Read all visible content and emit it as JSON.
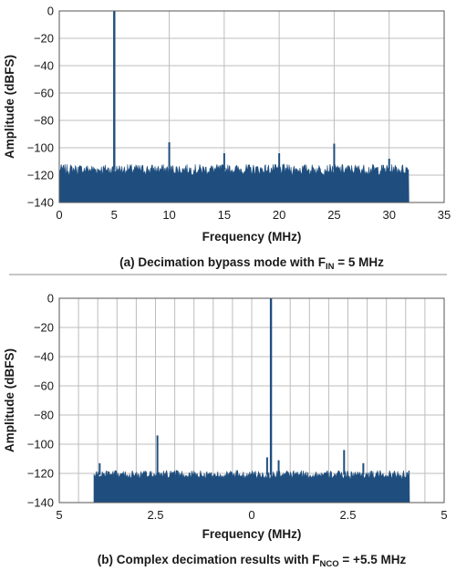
{
  "colors": {
    "trace": "#1f4e7e",
    "grid": "#bdbdbd",
    "frame": "#555555",
    "divider": "#8c8c8c"
  },
  "chart_data": [
    {
      "type": "line",
      "title": "",
      "caption_parts": [
        "(a) Decimation bypass mode with F",
        "IN",
        " = 5 MHz"
      ],
      "xlabel": "Frequency (MHz)",
      "ylabel": "Amplitude (dBFS)",
      "xlim": [
        0,
        35
      ],
      "ylim": [
        -140,
        0
      ],
      "x_ticks": [
        0,
        5,
        10,
        15,
        20,
        25,
        30,
        35
      ],
      "x_tick_labels": [
        "0",
        "5",
        "10",
        "15",
        "20",
        "25",
        "30",
        "35"
      ],
      "y_ticks": [
        0,
        -20,
        -40,
        -60,
        -80,
        -100,
        -120,
        -140
      ],
      "y_tick_labels": [
        "0",
        "−20",
        "−40",
        "−60",
        "−80",
        "−100",
        "−120",
        "−140"
      ],
      "grid": true,
      "noise_floor": {
        "x_range": [
          0,
          31.8
        ],
        "level": -116,
        "jitter": 4
      },
      "spurs": [
        {
          "x": 5,
          "y": 0
        },
        {
          "x": 10,
          "y": -96
        },
        {
          "x": 15,
          "y": -104
        },
        {
          "x": 20,
          "y": -104
        },
        {
          "x": 25,
          "y": -97
        },
        {
          "x": 30,
          "y": -108
        }
      ]
    },
    {
      "type": "line",
      "title": "",
      "caption_parts": [
        "(b) Complex decimation results with F",
        "NCO",
        " = +5.5 MHz"
      ],
      "xlabel": "Frequency (MHz)",
      "ylabel": "Amplitude (dBFS)",
      "xlim": [
        -5,
        5
      ],
      "ylim": [
        -140,
        0
      ],
      "x_ticks": [
        -5,
        -2.5,
        0,
        2.5,
        5
      ],
      "x_tick_labels": [
        "5",
        "2.5",
        "0",
        "2.5",
        "5"
      ],
      "y_ticks": [
        0,
        -20,
        -40,
        -60,
        -80,
        -100,
        -120,
        -140
      ],
      "y_tick_labels": [
        "0",
        "−20",
        "−40",
        "−60",
        "−80",
        "−100",
        "−120",
        "−140"
      ],
      "grid": true,
      "noise_floor": {
        "x_range": [
          -4.1,
          4.1
        ],
        "level": -121,
        "jitter": 3
      },
      "spurs": [
        {
          "x": 0.5,
          "y": 0
        },
        {
          "x": -2.45,
          "y": -94
        },
        {
          "x": 2.4,
          "y": -104
        },
        {
          "x": 0.7,
          "y": -111
        },
        {
          "x": 0.4,
          "y": -109
        },
        {
          "x": -3.95,
          "y": -113
        },
        {
          "x": 2.9,
          "y": -113
        }
      ]
    }
  ]
}
